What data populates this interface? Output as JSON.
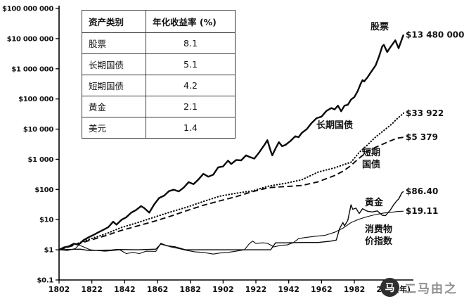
{
  "table": {
    "headers": [
      "资产类别",
      "年化收益率 (%)"
    ],
    "rows": [
      [
        "股票",
        "8.1"
      ],
      [
        "长期国债",
        "5.1"
      ],
      [
        "短期国债",
        "4.2"
      ],
      [
        "黄金",
        "2.1"
      ],
      [
        "美元",
        "1.4"
      ]
    ]
  },
  "watermark": {
    "logo_glyph": "马",
    "text": "二马由之"
  },
  "chart_data": {
    "type": "line",
    "y_scale": "log10",
    "x_range": [
      1802,
      2012
    ],
    "y_range": [
      0.1,
      100000000
    ],
    "x_axis_unit_label": "(年)",
    "x_ticks": [
      1802,
      1822,
      1842,
      1862,
      1882,
      1902,
      1922,
      1942,
      1962,
      1982,
      2002
    ],
    "y_ticks": [
      {
        "value": 100000000,
        "label": "$100 000 000"
      },
      {
        "value": 10000000,
        "label": "$10 000 000"
      },
      {
        "value": 1000000,
        "label": "$1 000 000"
      },
      {
        "value": 100000,
        "label": "$100 000"
      },
      {
        "value": 10000,
        "label": "$10 000"
      },
      {
        "value": 1000,
        "label": "$1 000"
      },
      {
        "value": 100,
        "label": "$100"
      },
      {
        "value": 10,
        "label": "$10"
      },
      {
        "value": 1,
        "label": "$1"
      },
      {
        "value": 0.1,
        "label": "$0.1"
      }
    ],
    "series": [
      {
        "key": "stocks",
        "name": "股票",
        "end_label": "$13 480 000",
        "style": "solid-thick",
        "points": [
          [
            1802,
            1
          ],
          [
            1805,
            1.2
          ],
          [
            1808,
            1.3
          ],
          [
            1811,
            1.6
          ],
          [
            1814,
            1.5
          ],
          [
            1817,
            2.1
          ],
          [
            1820,
            2.6
          ],
          [
            1823,
            3.1
          ],
          [
            1826,
            3.8
          ],
          [
            1829,
            4.6
          ],
          [
            1832,
            5.6
          ],
          [
            1835,
            8.5
          ],
          [
            1837,
            6.8
          ],
          [
            1840,
            9.8
          ],
          [
            1843,
            12
          ],
          [
            1846,
            17
          ],
          [
            1849,
            21
          ],
          [
            1852,
            28
          ],
          [
            1854,
            24
          ],
          [
            1857,
            17
          ],
          [
            1860,
            32
          ],
          [
            1863,
            52
          ],
          [
            1866,
            62
          ],
          [
            1869,
            88
          ],
          [
            1872,
            98
          ],
          [
            1875,
            86
          ],
          [
            1878,
            115
          ],
          [
            1881,
            175
          ],
          [
            1884,
            150
          ],
          [
            1887,
            215
          ],
          [
            1890,
            330
          ],
          [
            1893,
            265
          ],
          [
            1896,
            310
          ],
          [
            1899,
            540
          ],
          [
            1902,
            580
          ],
          [
            1905,
            900
          ],
          [
            1907,
            700
          ],
          [
            1910,
            950
          ],
          [
            1913,
            920
          ],
          [
            1916,
            1350
          ],
          [
            1918,
            1200
          ],
          [
            1921,
            1050
          ],
          [
            1924,
            1700
          ],
          [
            1927,
            2900
          ],
          [
            1929,
            4300
          ],
          [
            1931,
            1900
          ],
          [
            1932,
            1350
          ],
          [
            1934,
            2300
          ],
          [
            1936,
            3700
          ],
          [
            1938,
            2700
          ],
          [
            1940,
            3000
          ],
          [
            1943,
            4000
          ],
          [
            1946,
            5800
          ],
          [
            1948,
            5400
          ],
          [
            1950,
            7500
          ],
          [
            1953,
            10000
          ],
          [
            1956,
            16000
          ],
          [
            1959,
            23000
          ],
          [
            1962,
            26000
          ],
          [
            1965,
            40000
          ],
          [
            1968,
            50000
          ],
          [
            1970,
            45000
          ],
          [
            1972,
            60000
          ],
          [
            1974,
            39000
          ],
          [
            1976,
            60000
          ],
          [
            1978,
            64000
          ],
          [
            1980,
            95000
          ],
          [
            1982,
            115000
          ],
          [
            1984,
            180000
          ],
          [
            1986,
            330000
          ],
          [
            1987,
            420000
          ],
          [
            1988,
            380000
          ],
          [
            1990,
            520000
          ],
          [
            1992,
            750000
          ],
          [
            1995,
            1300000
          ],
          [
            1997,
            2500000
          ],
          [
            1999,
            5500000
          ],
          [
            2000,
            6200000
          ],
          [
            2002,
            3600000
          ],
          [
            2004,
            5200000
          ],
          [
            2007,
            8800000
          ],
          [
            2009,
            4800000
          ],
          [
            2010,
            6800000
          ],
          [
            2012,
            13480000
          ]
        ]
      },
      {
        "key": "long-bonds",
        "name": "长期国债",
        "end_label": "$33 922",
        "style": "dotted",
        "points": [
          [
            1802,
            1
          ],
          [
            1810,
            1.4
          ],
          [
            1820,
            2.2
          ],
          [
            1830,
            3.3
          ],
          [
            1840,
            5.5
          ],
          [
            1850,
            8
          ],
          [
            1860,
            12
          ],
          [
            1870,
            18
          ],
          [
            1880,
            26
          ],
          [
            1890,
            40
          ],
          [
            1900,
            60
          ],
          [
            1910,
            75
          ],
          [
            1920,
            90
          ],
          [
            1930,
            130
          ],
          [
            1940,
            160
          ],
          [
            1950,
            210
          ],
          [
            1960,
            380
          ],
          [
            1970,
            520
          ],
          [
            1975,
            650
          ],
          [
            1980,
            800
          ],
          [
            1985,
            1700
          ],
          [
            1990,
            3000
          ],
          [
            1995,
            5500
          ],
          [
            2000,
            9000
          ],
          [
            2005,
            15000
          ],
          [
            2008,
            22000
          ],
          [
            2010,
            27000
          ],
          [
            2012,
            33922
          ]
        ]
      },
      {
        "key": "short-bonds",
        "name": "短期国债",
        "end_label": "$5 379",
        "style": "dashed",
        "points": [
          [
            1802,
            1
          ],
          [
            1810,
            1.35
          ],
          [
            1820,
            2.0
          ],
          [
            1830,
            2.9
          ],
          [
            1840,
            4.4
          ],
          [
            1850,
            6.2
          ],
          [
            1860,
            8.8
          ],
          [
            1870,
            13
          ],
          [
            1880,
            20
          ],
          [
            1890,
            30
          ],
          [
            1900,
            42
          ],
          [
            1910,
            58
          ],
          [
            1920,
            85
          ],
          [
            1930,
            115
          ],
          [
            1940,
            125
          ],
          [
            1950,
            135
          ],
          [
            1960,
            180
          ],
          [
            1970,
            290
          ],
          [
            1975,
            400
          ],
          [
            1980,
            620
          ],
          [
            1985,
            1100
          ],
          [
            1990,
            1800
          ],
          [
            1995,
            2500
          ],
          [
            2000,
            3300
          ],
          [
            2005,
            4300
          ],
          [
            2008,
            5000
          ],
          [
            2012,
            5379
          ]
        ]
      },
      {
        "key": "gold",
        "name": "黄金",
        "end_label": "$86.40",
        "style": "solid",
        "points": [
          [
            1802,
            1
          ],
          [
            1815,
            1.05
          ],
          [
            1820,
            0.95
          ],
          [
            1834,
            0.98
          ],
          [
            1837,
            1.02
          ],
          [
            1850,
            1.0
          ],
          [
            1861,
            1.05
          ],
          [
            1864,
            1.55
          ],
          [
            1868,
            1.35
          ],
          [
            1873,
            1.25
          ],
          [
            1879,
            1.0
          ],
          [
            1890,
            1.0
          ],
          [
            1900,
            1.0
          ],
          [
            1914,
            1.0
          ],
          [
            1920,
            1.0
          ],
          [
            1931,
            1.0
          ],
          [
            1934,
            1.7
          ],
          [
            1940,
            1.7
          ],
          [
            1950,
            1.75
          ],
          [
            1960,
            1.75
          ],
          [
            1968,
            1.95
          ],
          [
            1971,
            2.1
          ],
          [
            1973,
            5.0
          ],
          [
            1975,
            8.0
          ],
          [
            1976,
            6.2
          ],
          [
            1978,
            9.5
          ],
          [
            1980,
            31
          ],
          [
            1981,
            22
          ],
          [
            1983,
            24
          ],
          [
            1985,
            16
          ],
          [
            1987,
            23
          ],
          [
            1990,
            19
          ],
          [
            1993,
            18
          ],
          [
            1996,
            19.5
          ],
          [
            1999,
            14
          ],
          [
            2001,
            13.5
          ],
          [
            2004,
            21
          ],
          [
            2006,
            31
          ],
          [
            2008,
            43
          ],
          [
            2009,
            48
          ],
          [
            2011,
            78
          ],
          [
            2012,
            86.4
          ]
        ]
      },
      {
        "key": "cpi",
        "name": "消费物价指数",
        "end_label": "$19.11",
        "style": "solid-thin",
        "points": [
          [
            1802,
            1
          ],
          [
            1807,
            0.95
          ],
          [
            1812,
            1.1
          ],
          [
            1814,
            1.45
          ],
          [
            1817,
            1.25
          ],
          [
            1821,
            1.0
          ],
          [
            1825,
            0.95
          ],
          [
            1830,
            0.9
          ],
          [
            1835,
            0.95
          ],
          [
            1839,
            1.0
          ],
          [
            1843,
            0.75
          ],
          [
            1847,
            0.82
          ],
          [
            1851,
            0.75
          ],
          [
            1855,
            0.9
          ],
          [
            1861,
            0.89
          ],
          [
            1864,
            1.65
          ],
          [
            1866,
            1.5
          ],
          [
            1870,
            1.25
          ],
          [
            1875,
            1.1
          ],
          [
            1880,
            0.95
          ],
          [
            1885,
            0.85
          ],
          [
            1890,
            0.82
          ],
          [
            1896,
            0.72
          ],
          [
            1900,
            0.78
          ],
          [
            1905,
            0.82
          ],
          [
            1910,
            0.9
          ],
          [
            1915,
            1.0
          ],
          [
            1918,
            1.6
          ],
          [
            1920,
            1.95
          ],
          [
            1922,
            1.62
          ],
          [
            1926,
            1.7
          ],
          [
            1929,
            1.65
          ],
          [
            1933,
            1.25
          ],
          [
            1937,
            1.4
          ],
          [
            1941,
            1.45
          ],
          [
            1945,
            1.75
          ],
          [
            1948,
            2.35
          ],
          [
            1952,
            2.55
          ],
          [
            1958,
            2.8
          ],
          [
            1964,
            3.0
          ],
          [
            1970,
            3.8
          ],
          [
            1975,
            5.2
          ],
          [
            1980,
            8.0
          ],
          [
            1985,
            10.4
          ],
          [
            1990,
            12.6
          ],
          [
            1995,
            14.7
          ],
          [
            2000,
            16.6
          ],
          [
            2005,
            17.6
          ],
          [
            2008,
            18.6
          ],
          [
            2010,
            18.9
          ],
          [
            2012,
            19.11
          ]
        ]
      }
    ]
  }
}
